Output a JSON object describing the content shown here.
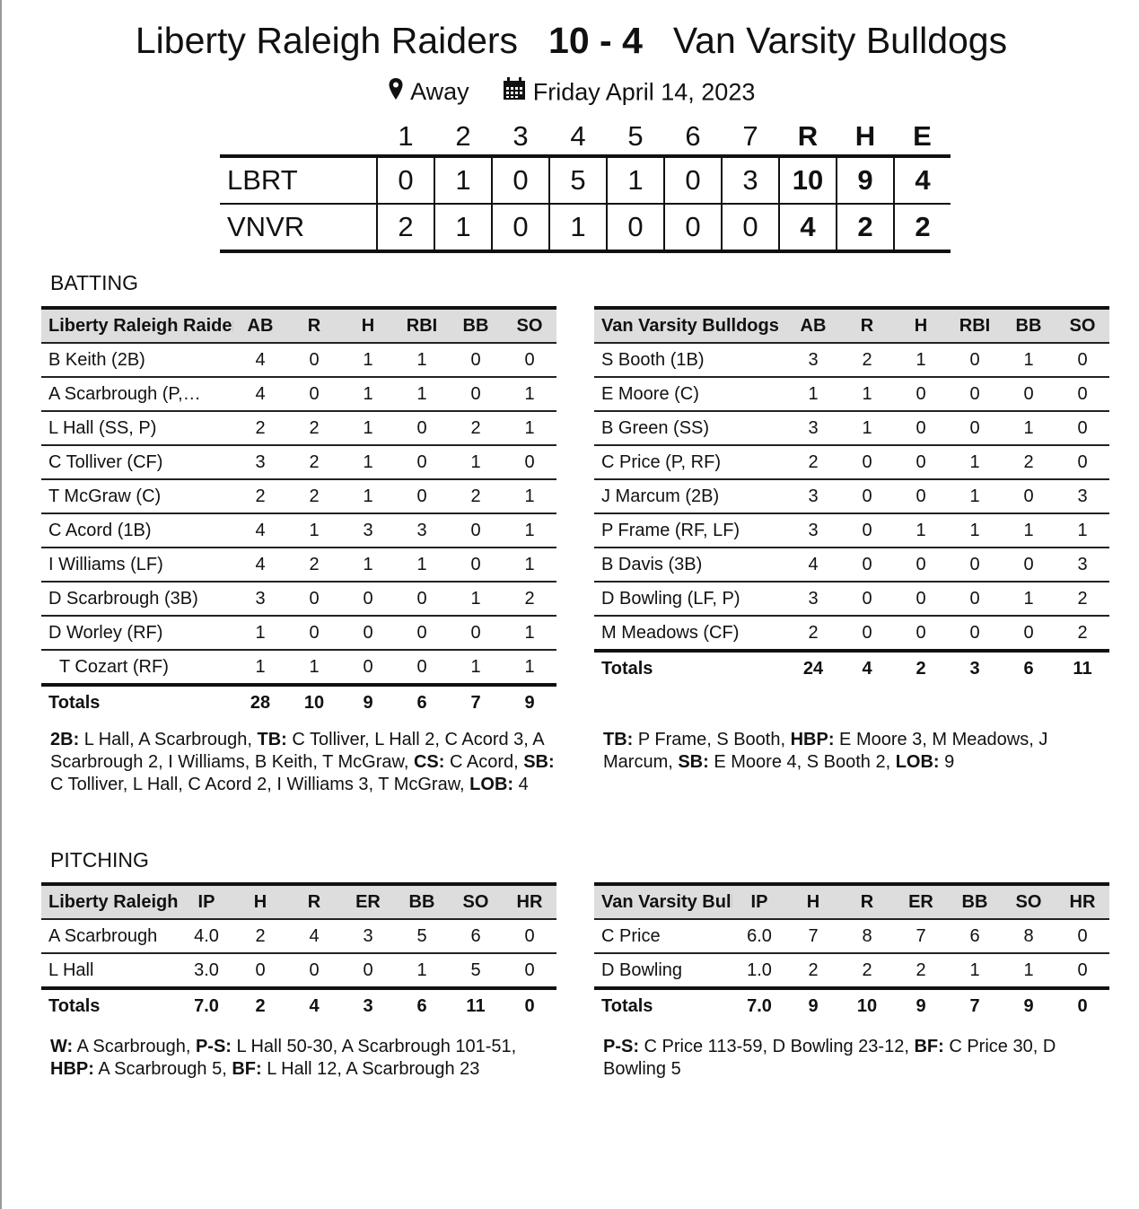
{
  "header": {
    "home": "Liberty Raleigh Raiders",
    "score": "10 - 4",
    "away": "Van Varsity Bulldogs",
    "location_icon": "map-pin-icon",
    "location": "Away",
    "date_icon": "calendar-icon",
    "date": "Friday April 14, 2023"
  },
  "linescore": {
    "columns": [
      "1",
      "2",
      "3",
      "4",
      "5",
      "6",
      "7",
      "R",
      "H",
      "E"
    ],
    "rows": [
      {
        "team": "LBRT",
        "values": [
          "0",
          "1",
          "0",
          "5",
          "1",
          "0",
          "3",
          "10",
          "9",
          "4"
        ]
      },
      {
        "team": "VNVR",
        "values": [
          "2",
          "1",
          "0",
          "1",
          "0",
          "0",
          "0",
          "4",
          "2",
          "2"
        ]
      }
    ]
  },
  "batting": {
    "title": "BATTING",
    "teams": [
      {
        "name": "Liberty Raleigh Raiders",
        "columns": [
          "AB",
          "R",
          "H",
          "RBI",
          "BB",
          "SO"
        ],
        "players": [
          {
            "name": "B Keith (2B)",
            "stats": [
              "4",
              "0",
              "1",
              "1",
              "0",
              "0"
            ]
          },
          {
            "name": "A Scarbrough (P,…",
            "stats": [
              "4",
              "0",
              "1",
              "1",
              "0",
              "1"
            ]
          },
          {
            "name": "L Hall (SS, P)",
            "stats": [
              "2",
              "2",
              "1",
              "0",
              "2",
              "1"
            ]
          },
          {
            "name": "C Tolliver (CF)",
            "stats": [
              "3",
              "2",
              "1",
              "0",
              "1",
              "0"
            ]
          },
          {
            "name": "T McGraw (C)",
            "stats": [
              "2",
              "2",
              "1",
              "0",
              "2",
              "1"
            ]
          },
          {
            "name": "C Acord (1B)",
            "stats": [
              "4",
              "1",
              "3",
              "3",
              "0",
              "1"
            ]
          },
          {
            "name": "I Williams (LF)",
            "stats": [
              "4",
              "2",
              "1",
              "1",
              "0",
              "1"
            ]
          },
          {
            "name": "D Scarbrough (3B)",
            "stats": [
              "3",
              "0",
              "0",
              "0",
              "1",
              "2"
            ]
          },
          {
            "name": "D Worley (RF)",
            "stats": [
              "1",
              "0",
              "0",
              "0",
              "0",
              "1"
            ]
          },
          {
            "name": "T Cozart (RF)",
            "sub": true,
            "stats": [
              "1",
              "1",
              "0",
              "0",
              "1",
              "1"
            ]
          }
        ],
        "totals_label": "Totals",
        "totals": [
          "28",
          "10",
          "9",
          "6",
          "7",
          "9"
        ],
        "notes": [
          {
            "l": "2B:",
            "t": " L Hall, A Scarbrough, "
          },
          {
            "l": "TB:",
            "t": " C Tolliver, L Hall 2, C Acord 3, A Scarbrough 2, I Williams, B Keith, T McGraw, "
          },
          {
            "l": "CS:",
            "t": " C Acord, "
          },
          {
            "l": "SB:",
            "t": " C Tolliver, L Hall, C Acord 2, I Williams 3, T McGraw, "
          },
          {
            "l": "LOB:",
            "t": " 4"
          }
        ]
      },
      {
        "name": "Van Varsity Bulldogs",
        "columns": [
          "AB",
          "R",
          "H",
          "RBI",
          "BB",
          "SO"
        ],
        "players": [
          {
            "name": "S Booth (1B)",
            "stats": [
              "3",
              "2",
              "1",
              "0",
              "1",
              "0"
            ]
          },
          {
            "name": "E Moore (C)",
            "stats": [
              "1",
              "1",
              "0",
              "0",
              "0",
              "0"
            ]
          },
          {
            "name": "B Green (SS)",
            "stats": [
              "3",
              "1",
              "0",
              "0",
              "1",
              "0"
            ]
          },
          {
            "name": "C Price (P, RF)",
            "stats": [
              "2",
              "0",
              "0",
              "1",
              "2",
              "0"
            ]
          },
          {
            "name": "J Marcum (2B)",
            "stats": [
              "3",
              "0",
              "0",
              "1",
              "0",
              "3"
            ]
          },
          {
            "name": "P Frame (RF, LF)",
            "stats": [
              "3",
              "0",
              "1",
              "1",
              "1",
              "1"
            ]
          },
          {
            "name": "B Davis (3B)",
            "stats": [
              "4",
              "0",
              "0",
              "0",
              "0",
              "3"
            ]
          },
          {
            "name": "D Bowling (LF, P)",
            "stats": [
              "3",
              "0",
              "0",
              "0",
              "1",
              "2"
            ]
          },
          {
            "name": "M Meadows (CF)",
            "stats": [
              "2",
              "0",
              "0",
              "0",
              "0",
              "2"
            ]
          }
        ],
        "totals_label": "Totals",
        "totals": [
          "24",
          "4",
          "2",
          "3",
          "6",
          "11"
        ],
        "notes": [
          {
            "l": "TB:",
            "t": " P Frame, S Booth, "
          },
          {
            "l": "HBP:",
            "t": " E Moore 3, M Meadows, J Marcum, "
          },
          {
            "l": "SB:",
            "t": " E Moore 4, S Booth 2, "
          },
          {
            "l": "LOB:",
            "t": " 9"
          }
        ]
      }
    ]
  },
  "pitching": {
    "title": "PITCHING",
    "teams": [
      {
        "name": "Liberty Raleigh Raiders",
        "columns": [
          "IP",
          "H",
          "R",
          "ER",
          "BB",
          "SO",
          "HR"
        ],
        "players": [
          {
            "name": "A Scarbrough",
            "stats": [
              "4.0",
              "2",
              "4",
              "3",
              "5",
              "6",
              "0"
            ]
          },
          {
            "name": "L Hall",
            "stats": [
              "3.0",
              "0",
              "0",
              "0",
              "1",
              "5",
              "0"
            ]
          }
        ],
        "totals_label": "Totals",
        "totals": [
          "7.0",
          "2",
          "4",
          "3",
          "6",
          "11",
          "0"
        ],
        "notes": [
          {
            "l": "W:",
            "t": " A Scarbrough, "
          },
          {
            "l": "P-S:",
            "t": " L Hall 50-30, A Scarbrough 101-51, "
          },
          {
            "l": "HBP:",
            "t": " A Scarbrough 5, "
          },
          {
            "l": "BF:",
            "t": " L Hall 12, A Scarbrough 23"
          }
        ]
      },
      {
        "name": "Van Varsity Bulldogs",
        "columns": [
          "IP",
          "H",
          "R",
          "ER",
          "BB",
          "SO",
          "HR"
        ],
        "players": [
          {
            "name": "C Price",
            "stats": [
              "6.0",
              "7",
              "8",
              "7",
              "6",
              "8",
              "0"
            ]
          },
          {
            "name": "D Bowling",
            "stats": [
              "1.0",
              "2",
              "2",
              "2",
              "1",
              "1",
              "0"
            ]
          }
        ],
        "totals_label": "Totals",
        "totals": [
          "7.0",
          "9",
          "10",
          "9",
          "7",
          "9",
          "0"
        ],
        "notes": [
          {
            "l": "P-S:",
            "t": " C Price 113-59, D Bowling 23-12, "
          },
          {
            "l": "BF:",
            "t": " C Price 30, D Bowling 5"
          }
        ]
      }
    ]
  }
}
